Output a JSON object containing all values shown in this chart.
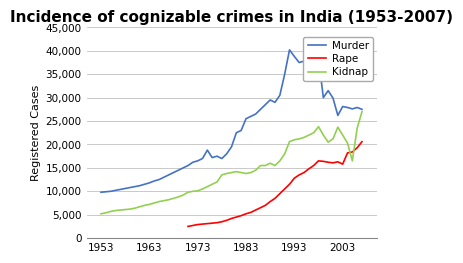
{
  "title": "Incidence of cognizable crimes in India (1953-2007)",
  "ylabel": "Registered Cases",
  "ylim": [
    0,
    45000
  ],
  "yticks": [
    0,
    5000,
    10000,
    15000,
    20000,
    25000,
    30000,
    35000,
    40000,
    45000
  ],
  "background_color": "#ffffff",
  "series": {
    "Murder": {
      "color": "#4472C4",
      "data": [
        [
          1953,
          9800
        ],
        [
          1954,
          9900
        ],
        [
          1955,
          10000
        ],
        [
          1956,
          10200
        ],
        [
          1957,
          10400
        ],
        [
          1958,
          10600
        ],
        [
          1959,
          10800
        ],
        [
          1960,
          11000
        ],
        [
          1961,
          11200
        ],
        [
          1962,
          11500
        ],
        [
          1963,
          11800
        ],
        [
          1964,
          12200
        ],
        [
          1965,
          12500
        ],
        [
          1966,
          13000
        ],
        [
          1967,
          13500
        ],
        [
          1968,
          14000
        ],
        [
          1969,
          14500
        ],
        [
          1970,
          15000
        ],
        [
          1971,
          15500
        ],
        [
          1972,
          16200
        ],
        [
          1973,
          16500
        ],
        [
          1974,
          17000
        ],
        [
          1975,
          18800
        ],
        [
          1976,
          17200
        ],
        [
          1977,
          17500
        ],
        [
          1978,
          17000
        ],
        [
          1979,
          18000
        ],
        [
          1980,
          19500
        ],
        [
          1981,
          22500
        ],
        [
          1982,
          23000
        ],
        [
          1983,
          25500
        ],
        [
          1984,
          26000
        ],
        [
          1985,
          26500
        ],
        [
          1986,
          27500
        ],
        [
          1987,
          28500
        ],
        [
          1988,
          29500
        ],
        [
          1989,
          29000
        ],
        [
          1990,
          30500
        ],
        [
          1991,
          35000
        ],
        [
          1992,
          40200
        ],
        [
          1993,
          38800
        ],
        [
          1994,
          37500
        ],
        [
          1995,
          37800
        ],
        [
          1996,
          38500
        ],
        [
          1997,
          37500
        ],
        [
          1998,
          38500
        ],
        [
          1999,
          30000
        ],
        [
          2000,
          31500
        ],
        [
          2001,
          29900
        ],
        [
          2002,
          26200
        ],
        [
          2003,
          28100
        ],
        [
          2004,
          27900
        ],
        [
          2005,
          27600
        ],
        [
          2006,
          27900
        ],
        [
          2007,
          27500
        ]
      ]
    },
    "Rape": {
      "color": "#FF0000",
      "data": [
        [
          1971,
          2500
        ],
        [
          1972,
          2700
        ],
        [
          1973,
          2900
        ],
        [
          1974,
          3000
        ],
        [
          1975,
          3100
        ],
        [
          1976,
          3200
        ],
        [
          1977,
          3300
        ],
        [
          1978,
          3500
        ],
        [
          1979,
          3800
        ],
        [
          1980,
          4200
        ],
        [
          1981,
          4500
        ],
        [
          1982,
          4800
        ],
        [
          1983,
          5200
        ],
        [
          1984,
          5500
        ],
        [
          1985,
          6000
        ],
        [
          1986,
          6500
        ],
        [
          1987,
          7000
        ],
        [
          1988,
          7800
        ],
        [
          1989,
          8500
        ],
        [
          1990,
          9500
        ],
        [
          1991,
          10500
        ],
        [
          1992,
          11500
        ],
        [
          1993,
          12800
        ],
        [
          1994,
          13500
        ],
        [
          1995,
          14000
        ],
        [
          1996,
          14800
        ],
        [
          1997,
          15500
        ],
        [
          1998,
          16500
        ],
        [
          1999,
          16400
        ],
        [
          2000,
          16200
        ],
        [
          2001,
          16075
        ],
        [
          2002,
          16300
        ],
        [
          2003,
          15800
        ],
        [
          2004,
          18200
        ],
        [
          2005,
          18400
        ],
        [
          2006,
          19300
        ],
        [
          2007,
          20600
        ]
      ]
    },
    "Kidnap": {
      "color": "#92D050",
      "data": [
        [
          1953,
          5200
        ],
        [
          1954,
          5400
        ],
        [
          1955,
          5700
        ],
        [
          1956,
          5900
        ],
        [
          1957,
          6000
        ],
        [
          1958,
          6100
        ],
        [
          1959,
          6200
        ],
        [
          1960,
          6400
        ],
        [
          1961,
          6700
        ],
        [
          1962,
          7000
        ],
        [
          1963,
          7200
        ],
        [
          1964,
          7500
        ],
        [
          1965,
          7800
        ],
        [
          1966,
          8000
        ],
        [
          1967,
          8200
        ],
        [
          1968,
          8500
        ],
        [
          1969,
          8800
        ],
        [
          1970,
          9200
        ],
        [
          1971,
          9800
        ],
        [
          1972,
          10000
        ],
        [
          1973,
          10100
        ],
        [
          1974,
          10500
        ],
        [
          1975,
          11000
        ],
        [
          1976,
          11500
        ],
        [
          1977,
          12000
        ],
        [
          1978,
          13500
        ],
        [
          1979,
          13800
        ],
        [
          1980,
          14000
        ],
        [
          1981,
          14200
        ],
        [
          1982,
          14000
        ],
        [
          1983,
          13800
        ],
        [
          1984,
          14000
        ],
        [
          1985,
          14500
        ],
        [
          1986,
          15500
        ],
        [
          1987,
          15500
        ],
        [
          1988,
          16000
        ],
        [
          1989,
          15500
        ],
        [
          1990,
          16500
        ],
        [
          1991,
          18000
        ],
        [
          1992,
          20600
        ],
        [
          1993,
          21000
        ],
        [
          1994,
          21200
        ],
        [
          1995,
          21500
        ],
        [
          1996,
          22000
        ],
        [
          1997,
          22500
        ],
        [
          1998,
          23800
        ],
        [
          1999,
          22000
        ],
        [
          2000,
          20500
        ],
        [
          2001,
          21200
        ],
        [
          2002,
          23700
        ],
        [
          2003,
          22000
        ],
        [
          2004,
          20300
        ],
        [
          2005,
          16500
        ],
        [
          2006,
          23500
        ],
        [
          2007,
          27000
        ]
      ]
    }
  },
  "xticks": [
    1953,
    1963,
    1973,
    1983,
    1993,
    2003
  ],
  "xlim": [
    1950,
    2010
  ],
  "legend_labels": [
    "Murder",
    "Rape",
    "Kidnap"
  ],
  "title_fontsize": 11,
  "axis_fontsize": 8,
  "tick_fontsize": 7.5
}
